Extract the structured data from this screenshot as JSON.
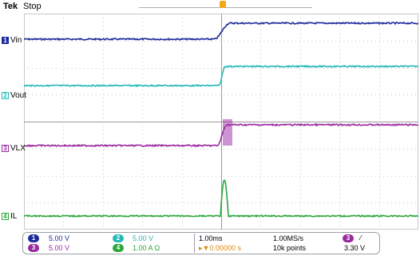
{
  "header": {
    "brand": "Tek",
    "state": "Stop"
  },
  "channels": [
    {
      "number": "1",
      "label": "Vin",
      "color": "#1c2a9c",
      "scale": "5.00 V"
    },
    {
      "number": "2",
      "label": "Vout",
      "color": "#26b8b8",
      "scale": "5.00 V"
    },
    {
      "number": "3",
      "label": "VLX",
      "color": "#9a2aa0",
      "scale": "5.00 V"
    },
    {
      "number": "4",
      "label": "IL",
      "color": "#2aa83a",
      "scale": "1.00 A",
      "coupling": "Ω"
    }
  ],
  "statusbar": {
    "timebase": "1.00ms",
    "sample_rate": "1.00MS/s",
    "trigger_offset": "▸▼0.00000 s",
    "record_length": "10k points",
    "trigger_source": "3",
    "trigger_slope": "∕",
    "trigger_level": "3.30 V"
  },
  "colors": {
    "background": "#ffffff",
    "grid": "#c8c8c8",
    "trigger": "#f0a818"
  }
}
